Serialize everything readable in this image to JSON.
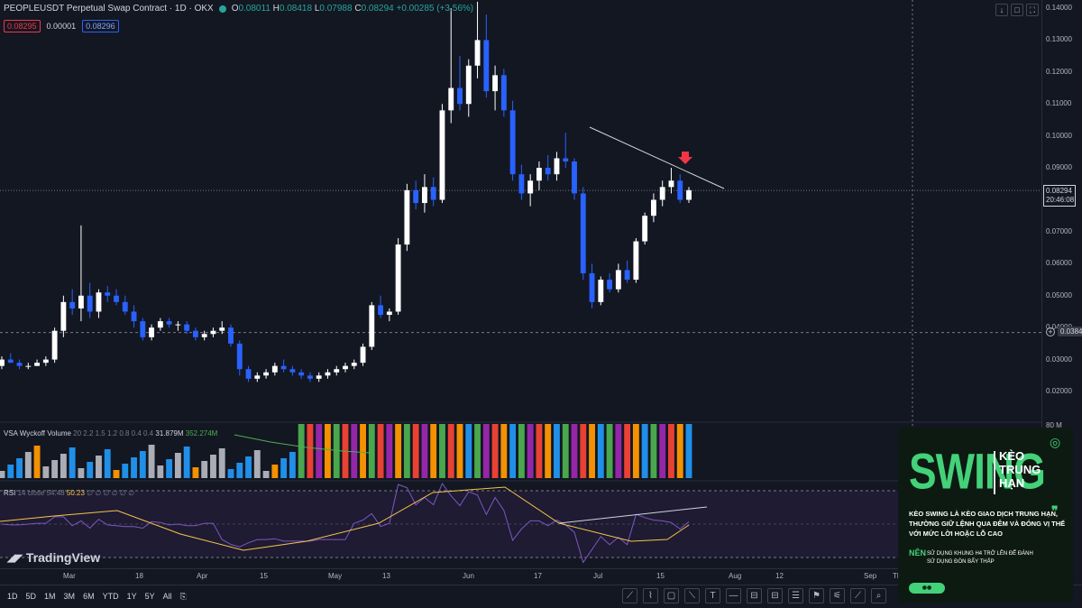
{
  "header": {
    "symbol": "PEOPLEUSDT Perpetual Swap Contract · 1D · OKX",
    "o": "0.08011",
    "h": "0.08418",
    "l": "0.07988",
    "c": "0.08294",
    "chg": "+0.00285 (+3.56%)",
    "o_label": "O",
    "h_label": "H",
    "l_label": "L",
    "c_label": "C"
  },
  "pills": {
    "bid": "0.08295",
    "spread": "0.00001",
    "ask": "0.08296"
  },
  "top_buttons": [
    "↓",
    "□",
    "⛶",
    "≡"
  ],
  "price_axis": {
    "ticks": [
      "0.14000",
      "0.13000",
      "0.12000",
      "0.11000",
      "0.10000",
      "0.09000",
      "0.08000",
      "0.07000",
      "0.06000",
      "0.05000",
      "0.04000",
      "0.03000",
      "0.02000"
    ],
    "current": "0.08294",
    "countdown": "20:46:08",
    "crosshair": "0.03847",
    "vol_tick": "80 M"
  },
  "volume": {
    "label": "VSA Wyckoff Volume",
    "params": "20 2.2 1.5 1.2 0.8 0.4 0.4",
    "v1": "31.879M",
    "v2": "352.274M"
  },
  "rsi": {
    "label": "RSI",
    "params": "14 close",
    "value1": "54.48",
    "value2": "50.23",
    "zeros": "∅ ∅ ∅ ∅ ∅ ∅"
  },
  "watermark": "TradingView",
  "time_axis": [
    "Mar",
    "18",
    "Apr",
    "15",
    "May",
    "13",
    "Jun",
    "17",
    "Jul",
    "15",
    "Aug",
    "12",
    "Sep",
    "Th"
  ],
  "timeframes": [
    "1D",
    "5D",
    "1M",
    "3M",
    "6M",
    "YTD",
    "1Y",
    "5Y",
    "All"
  ],
  "tools": [
    "⟋",
    "⌇",
    "▢",
    "⟍",
    "T",
    "—",
    "⊟",
    "⊟",
    "☰",
    "⚑",
    "⚟",
    "⟋",
    "⌕"
  ],
  "ad": {
    "title": "SWING",
    "sub": [
      "KÈO",
      "TRUNG",
      "HẠN"
    ],
    "desc": "KÈO SWING LÀ KÈO GIAO DỊCH TRUNG HẠN, THƯỜNG GIỮ LỆNH QUA ĐÊM VÀ ĐÓNG VỊ THẾ VỚI MỨC LỜI HOẶC LỖ CAO",
    "nen_label": "NÊN",
    "bullets": [
      "SỬ DỤNG KHUNG H4 TRỞ LÊN ĐỂ ĐÁNH",
      "SỬ DỤNG ĐÒN BẨY THẤP"
    ]
  },
  "colors": {
    "up": "#ffffff",
    "down": "#2962ff",
    "bg": "#131722"
  },
  "chart_data": {
    "type": "candlestick",
    "price_range": [
      0.015,
      0.14
    ],
    "candles": [
      [
        0.028,
        0.031,
        0.027,
        0.03
      ],
      [
        0.03,
        0.032,
        0.029,
        0.029
      ],
      [
        0.029,
        0.03,
        0.027,
        0.028
      ],
      [
        0.028,
        0.029,
        0.027,
        0.028
      ],
      [
        0.028,
        0.03,
        0.028,
        0.029
      ],
      [
        0.029,
        0.031,
        0.028,
        0.03
      ],
      [
        0.03,
        0.04,
        0.029,
        0.039
      ],
      [
        0.039,
        0.05,
        0.037,
        0.048
      ],
      [
        0.048,
        0.052,
        0.044,
        0.046
      ],
      [
        0.046,
        0.072,
        0.042,
        0.05
      ],
      [
        0.05,
        0.054,
        0.043,
        0.045
      ],
      [
        0.045,
        0.052,
        0.043,
        0.051
      ],
      [
        0.051,
        0.053,
        0.048,
        0.05
      ],
      [
        0.05,
        0.052,
        0.047,
        0.048
      ],
      [
        0.048,
        0.05,
        0.044,
        0.045
      ],
      [
        0.045,
        0.047,
        0.04,
        0.042
      ],
      [
        0.042,
        0.043,
        0.036,
        0.037
      ],
      [
        0.037,
        0.041,
        0.036,
        0.04
      ],
      [
        0.04,
        0.043,
        0.039,
        0.042
      ],
      [
        0.042,
        0.043,
        0.04,
        0.041
      ],
      [
        0.041,
        0.042,
        0.039,
        0.041
      ],
      [
        0.041,
        0.042,
        0.038,
        0.039
      ],
      [
        0.039,
        0.04,
        0.036,
        0.037
      ],
      [
        0.037,
        0.039,
        0.036,
        0.038
      ],
      [
        0.038,
        0.04,
        0.037,
        0.039
      ],
      [
        0.039,
        0.042,
        0.038,
        0.04
      ],
      [
        0.04,
        0.041,
        0.034,
        0.035
      ],
      [
        0.035,
        0.036,
        0.025,
        0.027
      ],
      [
        0.027,
        0.028,
        0.023,
        0.024
      ],
      [
        0.024,
        0.026,
        0.023,
        0.025
      ],
      [
        0.025,
        0.027,
        0.024,
        0.026
      ],
      [
        0.026,
        0.029,
        0.025,
        0.028
      ],
      [
        0.028,
        0.03,
        0.026,
        0.027
      ],
      [
        0.027,
        0.028,
        0.025,
        0.026
      ],
      [
        0.026,
        0.027,
        0.024,
        0.025
      ],
      [
        0.025,
        0.026,
        0.023,
        0.024
      ],
      [
        0.024,
        0.026,
        0.023,
        0.025
      ],
      [
        0.025,
        0.027,
        0.024,
        0.026
      ],
      [
        0.026,
        0.028,
        0.025,
        0.027
      ],
      [
        0.027,
        0.029,
        0.026,
        0.028
      ],
      [
        0.028,
        0.03,
        0.027,
        0.029
      ],
      [
        0.029,
        0.035,
        0.028,
        0.034
      ],
      [
        0.034,
        0.048,
        0.033,
        0.047
      ],
      [
        0.047,
        0.05,
        0.043,
        0.044
      ],
      [
        0.044,
        0.046,
        0.042,
        0.045
      ],
      [
        0.045,
        0.068,
        0.044,
        0.066
      ],
      [
        0.066,
        0.085,
        0.064,
        0.083
      ],
      [
        0.083,
        0.086,
        0.077,
        0.079
      ],
      [
        0.079,
        0.088,
        0.076,
        0.084
      ],
      [
        0.084,
        0.087,
        0.078,
        0.08
      ],
      [
        0.08,
        0.11,
        0.079,
        0.108
      ],
      [
        0.108,
        0.14,
        0.104,
        0.115
      ],
      [
        0.115,
        0.125,
        0.108,
        0.11
      ],
      [
        0.11,
        0.124,
        0.106,
        0.122
      ],
      [
        0.122,
        0.142,
        0.118,
        0.13
      ],
      [
        0.13,
        0.138,
        0.112,
        0.114
      ],
      [
        0.114,
        0.122,
        0.108,
        0.119
      ],
      [
        0.119,
        0.121,
        0.106,
        0.108
      ],
      [
        0.108,
        0.111,
        0.086,
        0.088
      ],
      [
        0.088,
        0.091,
        0.08,
        0.082
      ],
      [
        0.082,
        0.088,
        0.078,
        0.086
      ],
      [
        0.086,
        0.092,
        0.083,
        0.09
      ],
      [
        0.09,
        0.094,
        0.086,
        0.088
      ],
      [
        0.088,
        0.095,
        0.086,
        0.093
      ],
      [
        0.093,
        0.101,
        0.09,
        0.092
      ],
      [
        0.092,
        0.093,
        0.08,
        0.082
      ],
      [
        0.082,
        0.084,
        0.055,
        0.057
      ],
      [
        0.057,
        0.06,
        0.046,
        0.048
      ],
      [
        0.048,
        0.056,
        0.047,
        0.055
      ],
      [
        0.055,
        0.057,
        0.051,
        0.052
      ],
      [
        0.052,
        0.06,
        0.051,
        0.058
      ],
      [
        0.058,
        0.061,
        0.054,
        0.055
      ],
      [
        0.055,
        0.068,
        0.054,
        0.067
      ],
      [
        0.067,
        0.076,
        0.066,
        0.075
      ],
      [
        0.075,
        0.082,
        0.073,
        0.08
      ],
      [
        0.08,
        0.086,
        0.078,
        0.084
      ],
      [
        0.084,
        0.09,
        0.082,
        0.086
      ],
      [
        0.086,
        0.088,
        0.079,
        0.08
      ],
      [
        0.08,
        0.084,
        0.079,
        0.083
      ]
    ],
    "trendline_price": [
      [
        0.103,
        0.084
      ]
    ],
    "current_price": 0.08294,
    "crosshair_price": 0.03847
  }
}
